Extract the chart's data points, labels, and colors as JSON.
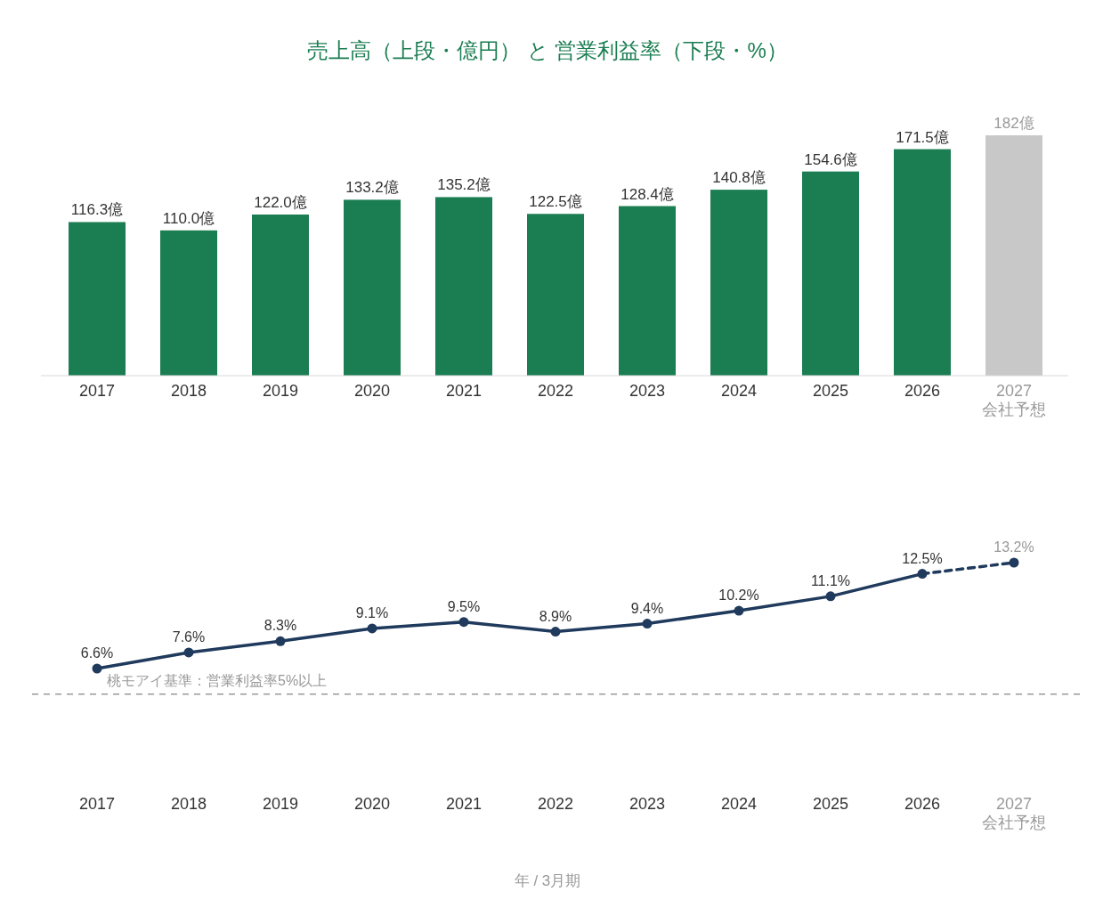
{
  "chart_data": [
    {
      "type": "bar",
      "title": "売上高（上段・億円） と 営業利益率（下段・%）",
      "categories": [
        "2017",
        "2018",
        "2019",
        "2020",
        "2021",
        "2022",
        "2023",
        "2024",
        "2025",
        "2026",
        "2027\n会社予想"
      ],
      "values": [
        116.3,
        110.0,
        122.0,
        133.2,
        135.2,
        122.5,
        128.4,
        140.8,
        154.6,
        171.5,
        182
      ],
      "colors": [
        "#1b7d52",
        "#1b7d52",
        "#1b7d52",
        "#1b7d52",
        "#1b7d52",
        "#1b7d52",
        "#1b7d52",
        "#1b7d52",
        "#1b7d52",
        "#1b7d52",
        "#c8c8c8"
      ],
      "value_labels": [
        "116.3億",
        "110.0億",
        "122.0億",
        "133.2億",
        "135.2億",
        "122.5億",
        "128.4億",
        "140.8億",
        "154.6億",
        "171.5億",
        "182億"
      ]
    },
    {
      "type": "line",
      "xlabel": "年 / 3月期",
      "categories": [
        "2017",
        "2018",
        "2019",
        "2020",
        "2021",
        "2022",
        "2023",
        "2024",
        "2025",
        "2026",
        "2027\n会社予想"
      ],
      "series": [
        {
          "color": "#1f3a5c",
          "line_style": "solid",
          "values": [
            6.6,
            7.6,
            8.3,
            9.1,
            9.5,
            8.9,
            9.4,
            10.2,
            11.1,
            12.5,
            null
          ],
          "value_labels": [
            "6.6%",
            "7.6%",
            "8.3%",
            "9.1%",
            "9.5%",
            "8.9%",
            "9.4%",
            "10.2%",
            "11.1%",
            "12.5%",
            null
          ]
        },
        {
          "color": "#1f3a5c",
          "line_style": "dashed",
          "values": [
            null,
            null,
            null,
            null,
            null,
            null,
            null,
            null,
            null,
            12.5,
            13.2
          ],
          "value_labels": [
            null,
            null,
            null,
            null,
            null,
            null,
            null,
            null,
            null,
            null,
            "13.2%"
          ]
        }
      ],
      "marker": "circle",
      "ref_lines": [
        {
          "axis": "y",
          "value": 5,
          "label": "桃モアイ基準：営業利益率5%以上",
          "color": "#999999",
          "line_style": "dashed"
        }
      ]
    }
  ]
}
